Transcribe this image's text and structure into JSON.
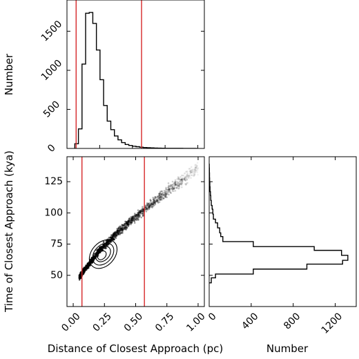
{
  "chart_data": [
    {
      "id": "hist-distance",
      "type": "bar",
      "position": "top-left",
      "xlim": [
        0.0,
        1.05
      ],
      "ylim": [
        0,
        1900
      ],
      "ylabel": "Number",
      "yticks": [
        0,
        500,
        1000,
        1500
      ],
      "bin_edges": [
        0.06,
        0.0875,
        0.115,
        0.1425,
        0.17,
        0.1975,
        0.225,
        0.2525,
        0.28,
        0.3075,
        0.335,
        0.3625,
        0.39,
        0.4175,
        0.445,
        0.4725,
        0.5,
        0.5275,
        0.555,
        0.5825,
        0.61,
        0.6375,
        0.665,
        0.6925,
        0.72,
        0.7475,
        0.775,
        0.8025,
        0.83,
        0.8575,
        0.885,
        0.9125,
        0.94,
        0.9675,
        0.995
      ],
      "values": [
        60,
        250,
        1080,
        1730,
        1740,
        1600,
        1260,
        880,
        550,
        350,
        240,
        160,
        110,
        75,
        50,
        38,
        28,
        22,
        16,
        12,
        9,
        7,
        5,
        4,
        3,
        2,
        2,
        1,
        1,
        1,
        0,
        0,
        0,
        0
      ],
      "vlines": [
        0.07,
        0.57
      ]
    },
    {
      "id": "scatter-density",
      "type": "scatter",
      "position": "bottom-left",
      "xlim": [
        -0.05,
        1.05
      ],
      "ylim": [
        25,
        145
      ],
      "xlabel": "Distance of Closest Approach (pc)",
      "ylabel": "Time of Closest Approach (kya)",
      "xticks": [
        "0.00",
        "0.25",
        "0.50",
        "0.75",
        "1.00"
      ],
      "yticks": [
        50,
        75,
        100,
        125
      ],
      "ridge": {
        "x": [
          0.04,
          0.06,
          0.08,
          0.1,
          0.12,
          0.15,
          0.18,
          0.21,
          0.25,
          0.3,
          0.35,
          0.4,
          0.45,
          0.5,
          0.55,
          0.6,
          0.65,
          0.7,
          0.75,
          0.8,
          0.85,
          0.9,
          0.95,
          1.0
        ],
        "y": [
          47,
          50,
          53,
          56,
          58,
          62,
          66,
          70,
          74,
          79,
          84,
          88,
          93,
          97,
          101,
          105,
          109,
          113,
          117,
          121,
          124,
          128,
          132,
          136
        ]
      },
      "contours": [
        {
          "cx": 0.24,
          "cy": 67,
          "rx": 0.13,
          "ry": 4.2,
          "angle_deg": 48
        },
        {
          "cx": 0.24,
          "cy": 67,
          "rx": 0.1,
          "ry": 3.2,
          "angle_deg": 48
        },
        {
          "cx": 0.24,
          "cy": 67,
          "rx": 0.07,
          "ry": 2.2,
          "angle_deg": 48
        },
        {
          "cx": 0.23,
          "cy": 66,
          "rx": 0.04,
          "ry": 1.3,
          "angle_deg": 48
        }
      ],
      "vlines": [
        0.07,
        0.57
      ]
    },
    {
      "id": "hist-time",
      "type": "bar",
      "orientation": "horizontal",
      "position": "bottom-right",
      "xlim": [
        0,
        1400
      ],
      "ylim": [
        25,
        145
      ],
      "xlabel": "Number",
      "xticks": [
        "0",
        "400",
        "800",
        "1200"
      ],
      "bin_edges": [
        44,
        48,
        51,
        55,
        59,
        62,
        66,
        70,
        73,
        77,
        81,
        84,
        88,
        92,
        95,
        99,
        103,
        106,
        110,
        114,
        117,
        121,
        125,
        128,
        132,
        136,
        139
      ],
      "values": [
        20,
        60,
        420,
        930,
        1270,
        1320,
        1260,
        1000,
        420,
        130,
        110,
        100,
        80,
        60,
        40,
        35,
        28,
        20,
        15,
        12,
        8,
        6,
        4,
        3,
        2,
        1
      ]
    }
  ]
}
